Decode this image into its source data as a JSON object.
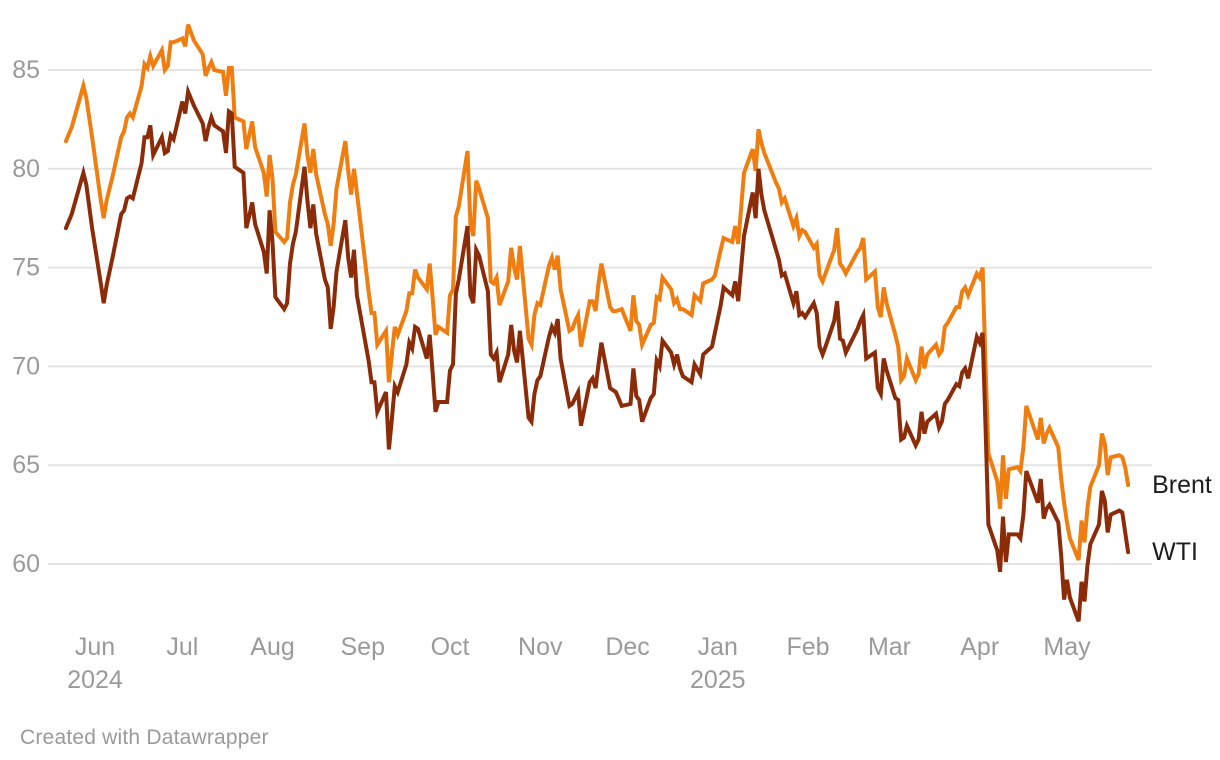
{
  "footer": {
    "credit": "Created with Datawrapper"
  },
  "colors": {
    "brent": "#F07D0F",
    "wti": "#8C2B08",
    "gridline": "#e4e4e4",
    "axis_text": "#9a9a9a",
    "legend_text": "#1d1d1d",
    "background": "#ffffff"
  },
  "chart_data": {
    "type": "line",
    "title": "",
    "xlabel": "",
    "ylabel": "",
    "grid": "horizontal-only",
    "legend_position": "right-of-line-ends",
    "ylim": [
      57,
      87.5
    ],
    "y_axis": {
      "ticks": [
        85,
        80,
        75,
        70,
        65,
        60
      ]
    },
    "x_axis": {
      "unit": "days-since-2024-06-01",
      "ticks": [
        {
          "label": "Jun",
          "year": "2024",
          "day": 0
        },
        {
          "label": "Jul",
          "day": 30
        },
        {
          "label": "Aug",
          "day": 61
        },
        {
          "label": "Sep",
          "day": 92
        },
        {
          "label": "Oct",
          "day": 122
        },
        {
          "label": "Nov",
          "day": 153
        },
        {
          "label": "Dec",
          "day": 183
        },
        {
          "label": "Jan",
          "year": "2025",
          "day": 214
        },
        {
          "label": "Feb",
          "day": 245
        },
        {
          "label": "Mar",
          "day": 273
        },
        {
          "label": "Apr",
          "day": 304
        },
        {
          "label": "May",
          "day": 334
        }
      ]
    },
    "x": [
      -10,
      -8,
      -4,
      -3,
      -1,
      2,
      3,
      4,
      6,
      9,
      10,
      11,
      12,
      13,
      16,
      17,
      18,
      19,
      20,
      23,
      24,
      25,
      26,
      27,
      30,
      31,
      32,
      34,
      37,
      38,
      39,
      40,
      41,
      44,
      45,
      46,
      47,
      48,
      51,
      52,
      53,
      54,
      55,
      58,
      59,
      60,
      61,
      62,
      65,
      66,
      67,
      68,
      69,
      72,
      73,
      74,
      75,
      76,
      79,
      80,
      81,
      82,
      83,
      86,
      87,
      88,
      89,
      90,
      94,
      95,
      96,
      97,
      100,
      101,
      102,
      103,
      104,
      107,
      108,
      109,
      110,
      111,
      114,
      115,
      116,
      117,
      118,
      121,
      122,
      123,
      124,
      125,
      128,
      129,
      130,
      131,
      132,
      135,
      136,
      137,
      138,
      139,
      142,
      143,
      144,
      145,
      146,
      149,
      150,
      151,
      152,
      153,
      156,
      157,
      158,
      159,
      160,
      163,
      164,
      165,
      166,
      167,
      170,
      171,
      172,
      173,
      174,
      177,
      178,
      179,
      181,
      184,
      185,
      186,
      187,
      188,
      191,
      192,
      193,
      194,
      195,
      198,
      199,
      200,
      201,
      202,
      205,
      206,
      208,
      209,
      212,
      213,
      215,
      216,
      219,
      220,
      221,
      223,
      226,
      227,
      228,
      229,
      230,
      234,
      235,
      236,
      237,
      240,
      241,
      242,
      243,
      244,
      247,
      248,
      249,
      250,
      251,
      254,
      255,
      256,
      257,
      258,
      262,
      263,
      264,
      265,
      268,
      269,
      270,
      271,
      272,
      275,
      276,
      277,
      278,
      279,
      282,
      283,
      284,
      285,
      286,
      289,
      290,
      291,
      292,
      293,
      296,
      297,
      298,
      299,
      300,
      303,
      304,
      305,
      306,
      307,
      310,
      311,
      312,
      313,
      314,
      317,
      318,
      319,
      320,
      324,
      325,
      326,
      327,
      328,
      331,
      332,
      333,
      334,
      335,
      338,
      339,
      340,
      341,
      342,
      345,
      346,
      347,
      348,
      349,
      352,
      353,
      354,
      355
    ],
    "series": [
      {
        "name": "Brent",
        "color": "#F07D0F",
        "values": [
          81.4,
          82.1,
          84.2,
          83.6,
          81.6,
          78.4,
          77.5,
          78.4,
          79.6,
          81.6,
          81.9,
          82.6,
          82.8,
          82.6,
          84.2,
          85.3,
          85.1,
          85.7,
          85.2,
          86.0,
          85.0,
          85.2,
          86.4,
          86.4,
          86.6,
          86.2,
          87.3,
          86.5,
          85.8,
          84.7,
          85.1,
          85.4,
          85.0,
          84.9,
          83.7,
          85.1,
          85.1,
          82.6,
          82.4,
          81.0,
          81.7,
          82.4,
          81.1,
          79.8,
          78.6,
          80.7,
          79.5,
          76.8,
          76.3,
          76.5,
          78.3,
          79.2,
          79.7,
          82.3,
          80.7,
          79.8,
          81.0,
          79.7,
          77.7,
          77.2,
          76.1,
          77.2,
          79.0,
          81.4,
          79.9,
          78.7,
          80.0,
          78.8,
          73.8,
          72.7,
          72.7,
          71.1,
          71.8,
          69.2,
          70.6,
          72.0,
          71.6,
          72.8,
          73.7,
          73.7,
          74.9,
          74.5,
          73.9,
          75.2,
          73.5,
          71.6,
          72.0,
          71.7,
          73.6,
          73.9,
          77.6,
          78.1,
          80.9,
          77.2,
          76.6,
          79.4,
          79.0,
          77.5,
          74.3,
          74.2,
          74.5,
          73.1,
          74.3,
          76.0,
          75.0,
          74.4,
          76.1,
          71.4,
          71.1,
          72.6,
          73.2,
          73.1,
          75.1,
          75.5,
          74.9,
          75.6,
          73.9,
          71.8,
          71.9,
          72.3,
          72.6,
          71.0,
          73.3,
          73.3,
          72.8,
          74.2,
          75.2,
          73.0,
          72.8,
          72.8,
          72.9,
          71.8,
          73.6,
          72.3,
          72.1,
          71.1,
          72.1,
          72.2,
          73.5,
          73.4,
          74.5,
          73.9,
          73.2,
          73.4,
          72.9,
          72.9,
          72.6,
          73.6,
          73.3,
          74.2,
          74.4,
          74.6,
          75.9,
          76.5,
          76.3,
          77.1,
          76.2,
          79.8,
          81.0,
          79.9,
          82.0,
          81.3,
          80.8,
          79.3,
          79.0,
          78.3,
          78.5,
          77.1,
          77.5,
          76.6,
          76.9,
          76.8,
          76.0,
          76.2,
          74.6,
          74.3,
          74.7,
          75.9,
          77.0,
          75.2,
          75.0,
          74.7,
          75.8,
          76.0,
          76.5,
          74.4,
          74.8,
          73.0,
          72.5,
          74.0,
          73.2,
          71.6,
          71.0,
          69.3,
          69.5,
          70.4,
          69.3,
          69.6,
          71.0,
          69.9,
          70.6,
          71.1,
          70.6,
          70.8,
          72.0,
          72.2,
          73.0,
          73.0,
          73.8,
          74.0,
          73.6,
          74.7,
          74.5,
          75.0,
          70.1,
          65.6,
          64.2,
          62.8,
          65.5,
          63.3,
          64.8,
          64.9,
          64.7,
          65.9,
          68.0,
          66.3,
          67.4,
          66.1,
          66.6,
          66.9,
          65.9,
          64.3,
          63.1,
          62.1,
          61.3,
          60.2,
          62.2,
          61.1,
          62.8,
          63.9,
          65.0,
          66.6,
          66.1,
          64.5,
          65.4,
          65.5,
          65.4,
          64.9,
          64.0
        ]
      },
      {
        "name": "WTI",
        "color": "#8C2B08",
        "values": [
          77.0,
          77.7,
          79.8,
          79.2,
          77.0,
          74.2,
          73.2,
          74.1,
          75.5,
          77.7,
          77.9,
          78.5,
          78.6,
          78.5,
          80.3,
          81.6,
          81.6,
          82.2,
          80.7,
          81.6,
          80.8,
          80.9,
          81.7,
          81.5,
          83.4,
          82.8,
          83.9,
          83.2,
          82.3,
          81.4,
          82.1,
          82.6,
          82.2,
          81.9,
          80.8,
          82.9,
          82.8,
          80.1,
          79.8,
          77.0,
          77.6,
          78.3,
          77.2,
          75.8,
          74.7,
          77.9,
          76.3,
          73.5,
          72.9,
          73.2,
          75.2,
          76.2,
          76.8,
          80.1,
          78.4,
          77.0,
          78.2,
          76.7,
          74.4,
          74.0,
          71.9,
          73.0,
          74.8,
          77.4,
          75.5,
          74.5,
          75.9,
          73.6,
          70.3,
          69.2,
          69.2,
          67.7,
          68.7,
          65.8,
          67.3,
          69.0,
          68.7,
          70.1,
          71.2,
          70.9,
          72.0,
          71.9,
          70.4,
          71.6,
          69.7,
          67.7,
          68.2,
          68.2,
          69.8,
          70.1,
          73.7,
          74.4,
          77.1,
          73.6,
          73.2,
          75.9,
          75.6,
          73.8,
          70.6,
          70.4,
          70.7,
          69.2,
          70.6,
          72.1,
          70.8,
          70.2,
          71.8,
          67.4,
          67.2,
          68.6,
          69.3,
          69.5,
          71.5,
          72.0,
          71.7,
          72.4,
          70.4,
          68.0,
          68.1,
          68.4,
          68.7,
          67.0,
          69.2,
          69.4,
          68.9,
          70.1,
          71.2,
          68.9,
          68.8,
          68.7,
          68.0,
          68.1,
          69.9,
          68.5,
          68.3,
          67.2,
          68.4,
          68.6,
          70.3,
          70.0,
          71.3,
          70.7,
          70.1,
          70.6,
          69.9,
          69.5,
          69.2,
          70.1,
          69.6,
          70.6,
          71.0,
          71.7,
          73.1,
          74.0,
          73.6,
          74.3,
          73.3,
          76.6,
          78.8,
          77.5,
          80.0,
          78.7,
          77.9,
          75.9,
          75.4,
          74.6,
          74.7,
          73.2,
          73.8,
          72.6,
          72.7,
          72.5,
          73.2,
          72.7,
          71.0,
          70.6,
          71.0,
          72.3,
          73.3,
          71.4,
          71.3,
          70.7,
          71.9,
          72.3,
          72.6,
          70.4,
          70.7,
          68.9,
          68.6,
          70.4,
          69.8,
          68.4,
          68.3,
          66.3,
          66.4,
          67.0,
          66.0,
          66.3,
          67.7,
          66.6,
          67.2,
          67.6,
          66.9,
          67.2,
          68.1,
          68.3,
          69.1,
          69.0,
          69.7,
          69.9,
          69.4,
          71.5,
          71.2,
          71.7,
          67.0,
          62.0,
          60.7,
          59.6,
          62.4,
          60.1,
          61.5,
          61.5,
          61.3,
          62.5,
          64.7,
          63.1,
          64.3,
          62.3,
          62.8,
          63.0,
          62.1,
          60.4,
          58.2,
          59.2,
          58.3,
          57.1,
          59.1,
          58.1,
          59.9,
          61.0,
          62.0,
          63.7,
          63.2,
          61.6,
          62.5,
          62.7,
          62.6,
          61.6,
          60.6
        ]
      }
    ]
  }
}
